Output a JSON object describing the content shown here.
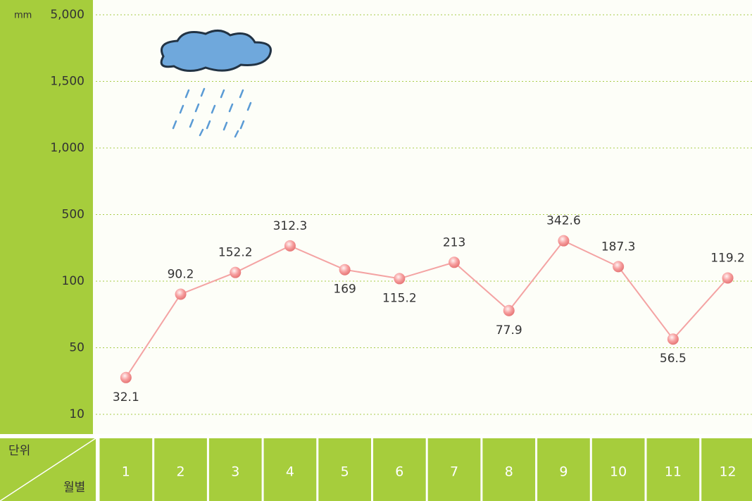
{
  "chart_data": {
    "type": "line",
    "y_unit_label": "mm",
    "corner_top": "단위",
    "corner_bottom": "월별",
    "categories": [
      "1",
      "2",
      "3",
      "4",
      "5",
      "6",
      "7",
      "8",
      "9",
      "10",
      "11",
      "12"
    ],
    "series": [
      {
        "color": "#f4a3a3",
        "values": [
          32.1,
          90.2,
          152.2,
          312.3,
          169,
          115.2,
          213,
          77.9,
          342.6,
          187.3,
          56.5,
          119.2
        ]
      }
    ],
    "ylim": [
      10,
      5000
    ],
    "yticks": [
      10,
      50,
      100,
      500,
      {
        "value": 1000,
        "label": "1,000"
      },
      {
        "value": 1500,
        "label": "1,500"
      },
      {
        "value": 5000,
        "label": "5,000"
      }
    ],
    "grid": true
  }
}
